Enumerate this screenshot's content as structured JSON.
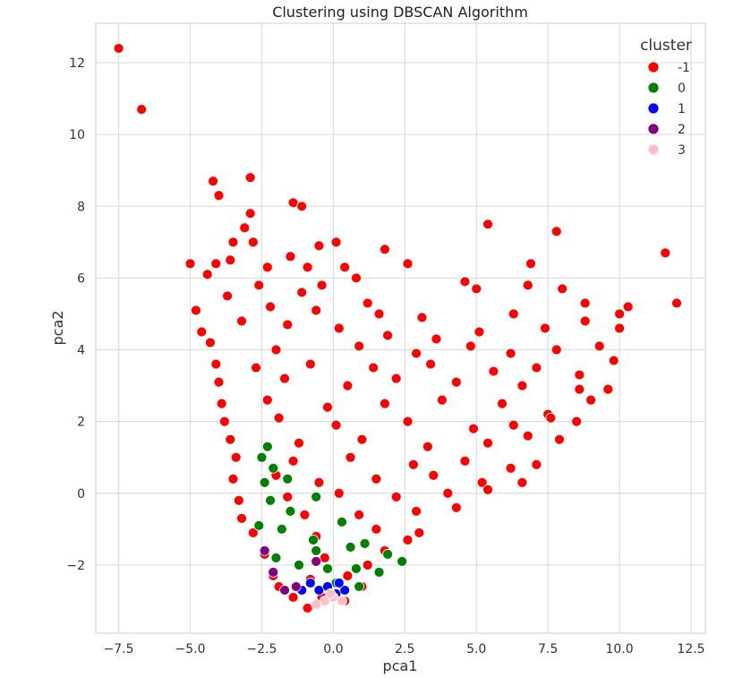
{
  "chart_data": {
    "type": "scatter",
    "title": "Clustering using DBSCAN Algorithm",
    "xlabel": "pca1",
    "ylabel": "pca2",
    "xlim": [
      -8.3,
      13.0
    ],
    "ylim": [
      -3.9,
      13.1
    ],
    "grid": true,
    "x_ticks": [
      -7.5,
      -5.0,
      -2.5,
      0.0,
      2.5,
      5.0,
      7.5,
      10.0,
      12.5
    ],
    "x_tick_labels": [
      "−7.5",
      "−5.0",
      "−2.5",
      "0.0",
      "2.5",
      "5.0",
      "7.5",
      "10.0",
      "12.5"
    ],
    "y_ticks": [
      -2,
      0,
      2,
      4,
      6,
      8,
      10,
      12
    ],
    "y_tick_labels": [
      "−2",
      "0",
      "2",
      "4",
      "6",
      "8",
      "10",
      "12"
    ],
    "legend": {
      "title": "cluster",
      "placement": "top-right",
      "entries": [
        {
          "label": "-1",
          "color": "#ff0000"
        },
        {
          "label": "0",
          "color": "#008000"
        },
        {
          "label": "1",
          "color": "#0000ff"
        },
        {
          "label": "2",
          "color": "#800080"
        },
        {
          "label": "3",
          "color": "#ffc0cb"
        }
      ]
    },
    "series": [
      {
        "name": "-1",
        "color": "#ff0000",
        "points": [
          [
            -7.5,
            12.4
          ],
          [
            -6.7,
            10.7
          ],
          [
            -4.2,
            8.7
          ],
          [
            -4.0,
            8.3
          ],
          [
            -2.9,
            8.8
          ],
          [
            -1.4,
            8.1
          ],
          [
            -1.1,
            8.0
          ],
          [
            -2.9,
            7.8
          ],
          [
            -3.1,
            7.4
          ],
          [
            -2.8,
            7.0
          ],
          [
            -3.5,
            7.0
          ],
          [
            -0.5,
            6.9
          ],
          [
            0.1,
            7.0
          ],
          [
            1.8,
            6.8
          ],
          [
            5.4,
            7.5
          ],
          [
            7.8,
            7.3
          ],
          [
            -5.0,
            6.4
          ],
          [
            -4.1,
            6.4
          ],
          [
            -3.6,
            6.5
          ],
          [
            -2.3,
            6.3
          ],
          [
            -1.5,
            6.6
          ],
          [
            -0.9,
            6.3
          ],
          [
            0.4,
            6.3
          ],
          [
            0.8,
            6.0
          ],
          [
            2.6,
            6.4
          ],
          [
            6.9,
            6.4
          ],
          [
            11.6,
            6.7
          ],
          [
            -4.4,
            6.1
          ],
          [
            -2.6,
            5.8
          ],
          [
            -1.1,
            5.6
          ],
          [
            -0.4,
            5.8
          ],
          [
            4.6,
            5.9
          ],
          [
            5.0,
            5.7
          ],
          [
            6.8,
            5.8
          ],
          [
            8.0,
            5.7
          ],
          [
            12.0,
            5.3
          ],
          [
            10.3,
            5.2
          ],
          [
            -4.8,
            5.1
          ],
          [
            -3.7,
            5.5
          ],
          [
            -2.2,
            5.2
          ],
          [
            -0.6,
            5.1
          ],
          [
            1.2,
            5.3
          ],
          [
            1.6,
            5.0
          ],
          [
            3.1,
            4.9
          ],
          [
            6.3,
            5.0
          ],
          [
            8.8,
            5.3
          ],
          [
            10.0,
            5.0
          ],
          [
            -4.6,
            4.5
          ],
          [
            -3.2,
            4.8
          ],
          [
            -1.6,
            4.7
          ],
          [
            0.2,
            4.6
          ],
          [
            1.9,
            4.4
          ],
          [
            3.6,
            4.3
          ],
          [
            5.1,
            4.5
          ],
          [
            7.4,
            4.6
          ],
          [
            8.8,
            4.8
          ],
          [
            10.0,
            4.6
          ],
          [
            -4.3,
            4.2
          ],
          [
            -2.0,
            4.0
          ],
          [
            0.9,
            4.1
          ],
          [
            2.9,
            3.9
          ],
          [
            4.8,
            4.1
          ],
          [
            6.2,
            3.9
          ],
          [
            7.8,
            4.0
          ],
          [
            9.3,
            4.1
          ],
          [
            -4.1,
            3.6
          ],
          [
            -2.7,
            3.5
          ],
          [
            -0.8,
            3.6
          ],
          [
            1.4,
            3.5
          ],
          [
            3.4,
            3.6
          ],
          [
            5.6,
            3.4
          ],
          [
            7.1,
            3.5
          ],
          [
            8.6,
            3.3
          ],
          [
            9.8,
            3.7
          ],
          [
            -4.0,
            3.1
          ],
          [
            -1.7,
            3.2
          ],
          [
            0.5,
            3.0
          ],
          [
            2.2,
            3.2
          ],
          [
            4.3,
            3.1
          ],
          [
            6.6,
            3.0
          ],
          [
            8.6,
            2.9
          ],
          [
            9.6,
            2.9
          ],
          [
            -3.9,
            2.5
          ],
          [
            -2.3,
            2.6
          ],
          [
            -0.2,
            2.4
          ],
          [
            1.8,
            2.5
          ],
          [
            3.8,
            2.6
          ],
          [
            5.9,
            2.5
          ],
          [
            7.5,
            2.2
          ],
          [
            9.0,
            2.6
          ],
          [
            -3.8,
            2.0
          ],
          [
            -1.9,
            2.1
          ],
          [
            0.1,
            1.9
          ],
          [
            2.6,
            2.0
          ],
          [
            4.9,
            1.8
          ],
          [
            6.3,
            1.9
          ],
          [
            7.6,
            2.1
          ],
          [
            8.5,
            2.0
          ],
          [
            -3.6,
            1.5
          ],
          [
            -1.2,
            1.4
          ],
          [
            1.0,
            1.5
          ],
          [
            3.3,
            1.3
          ],
          [
            5.4,
            1.4
          ],
          [
            6.8,
            1.6
          ],
          [
            7.9,
            1.5
          ],
          [
            -3.4,
            1.0
          ],
          [
            -1.4,
            0.9
          ],
          [
            0.6,
            1.0
          ],
          [
            2.8,
            0.8
          ],
          [
            4.6,
            0.9
          ],
          [
            6.2,
            0.7
          ],
          [
            7.1,
            0.8
          ],
          [
            -3.5,
            0.4
          ],
          [
            -2.0,
            0.5
          ],
          [
            -0.5,
            0.3
          ],
          [
            1.5,
            0.4
          ],
          [
            3.5,
            0.5
          ],
          [
            5.2,
            0.3
          ],
          [
            6.6,
            0.3
          ],
          [
            -3.3,
            -0.2
          ],
          [
            -1.6,
            -0.1
          ],
          [
            0.2,
            0.0
          ],
          [
            2.2,
            -0.1
          ],
          [
            4.0,
            0.0
          ],
          [
            5.4,
            0.1
          ],
          [
            -3.2,
            -0.7
          ],
          [
            -1.0,
            -0.6
          ],
          [
            0.9,
            -0.6
          ],
          [
            2.9,
            -0.5
          ],
          [
            4.3,
            -0.4
          ],
          [
            -2.8,
            -1.1
          ],
          [
            -0.6,
            -1.2
          ],
          [
            1.5,
            -1.0
          ],
          [
            3.0,
            -1.1
          ],
          [
            -2.4,
            -1.7
          ],
          [
            -0.3,
            -1.8
          ],
          [
            1.8,
            -1.6
          ],
          [
            2.6,
            -1.3
          ],
          [
            -2.1,
            -2.3
          ],
          [
            -0.8,
            -2.4
          ],
          [
            0.5,
            -2.3
          ],
          [
            1.2,
            -2.0
          ],
          [
            -1.4,
            -2.9
          ],
          [
            -0.4,
            -2.9
          ],
          [
            0.4,
            -3.0
          ],
          [
            -0.9,
            -3.2
          ],
          [
            -1.9,
            -2.6
          ],
          [
            1.0,
            -2.6
          ]
        ]
      },
      {
        "name": "0",
        "color": "#008000",
        "points": [
          [
            -2.5,
            1.0
          ],
          [
            -2.3,
            1.3
          ],
          [
            -2.1,
            0.7
          ],
          [
            -2.4,
            0.3
          ],
          [
            -1.6,
            0.4
          ],
          [
            -2.2,
            -0.2
          ],
          [
            -1.5,
            -0.5
          ],
          [
            -0.6,
            -0.1
          ],
          [
            -2.6,
            -0.9
          ],
          [
            -1.8,
            -1.0
          ],
          [
            -0.7,
            -1.3
          ],
          [
            0.3,
            -0.8
          ],
          [
            1.1,
            -1.4
          ],
          [
            1.9,
            -1.7
          ],
          [
            2.4,
            -1.9
          ],
          [
            -2.0,
            -1.8
          ],
          [
            -1.2,
            -2.0
          ],
          [
            -0.2,
            -2.1
          ],
          [
            0.8,
            -2.1
          ],
          [
            1.6,
            -2.2
          ],
          [
            -1.3,
            -2.6
          ],
          [
            0.1,
            -2.5
          ],
          [
            0.9,
            -2.6
          ],
          [
            -0.6,
            -1.6
          ],
          [
            0.6,
            -1.5
          ]
        ]
      },
      {
        "name": "1",
        "color": "#0000ff",
        "points": [
          [
            -0.8,
            -2.5
          ],
          [
            -0.5,
            -2.7
          ],
          [
            -0.2,
            -2.6
          ],
          [
            0.1,
            -2.8
          ],
          [
            0.4,
            -2.7
          ],
          [
            -1.1,
            -2.7
          ],
          [
            0.2,
            -2.5
          ]
        ]
      },
      {
        "name": "2",
        "color": "#800080",
        "points": [
          [
            -2.4,
            -1.6
          ],
          [
            -0.6,
            -1.9
          ],
          [
            -1.7,
            -2.7
          ],
          [
            -1.3,
            -2.6
          ],
          [
            -2.1,
            -2.2
          ]
        ]
      },
      {
        "name": "3",
        "color": "#ffc0cb",
        "points": [
          [
            -0.3,
            -3.0
          ],
          [
            0.0,
            -2.9
          ],
          [
            -0.6,
            -3.1
          ],
          [
            0.3,
            -3.0
          ],
          [
            -0.1,
            -2.8
          ]
        ]
      }
    ]
  }
}
